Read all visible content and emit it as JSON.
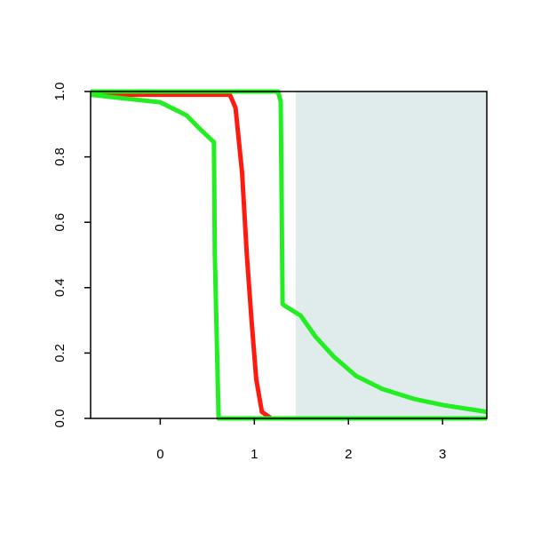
{
  "chart_data": {
    "type": "line",
    "xlim": [
      -0.74,
      3.47
    ],
    "ylim": [
      0,
      1
    ],
    "xticks": [
      0,
      1,
      2,
      3
    ],
    "yticks": [
      {
        "value": 0,
        "label": "0.0"
      },
      {
        "value": 0.2,
        "label": "0.2"
      },
      {
        "value": 0.4,
        "label": "0.4"
      },
      {
        "value": 0.6,
        "label": "0.6"
      },
      {
        "value": 0.8,
        "label": "0.8"
      },
      {
        "value": 1,
        "label": "1.0"
      }
    ],
    "shaded_region": {
      "x": [
        1.44,
        3.47
      ],
      "color": "#dfeceb"
    },
    "series": [
      {
        "color": "#ff1a10",
        "x": [
          -0.74,
          0.74,
          0.8,
          0.87,
          0.92,
          0.97,
          1.02,
          1.08,
          1.18,
          3.47
        ],
        "values": [
          0.99,
          0.99,
          0.95,
          0.75,
          0.5,
          0.3,
          0.12,
          0.02,
          0,
          0
        ]
      },
      {
        "color": "#22ee22",
        "x": [
          -0.74,
          0,
          0.28,
          0.42,
          0.57,
          0.58,
          0.62,
          3.47
        ],
        "values": [
          0.99,
          0.967,
          0.927,
          0.886,
          0.845,
          0.5,
          0,
          0
        ]
      },
      {
        "color": "#22ee22",
        "x": [
          -0.74,
          1.25,
          1.28,
          1.3,
          1.32,
          1.49,
          1.65,
          1.84,
          2.08,
          2.36,
          2.69,
          3.02,
          3.47
        ],
        "values": [
          1,
          1,
          0.97,
          0.35,
          0.345,
          0.315,
          0.25,
          0.19,
          0.13,
          0.09,
          0.06,
          0.04,
          0.02
        ]
      }
    ]
  }
}
